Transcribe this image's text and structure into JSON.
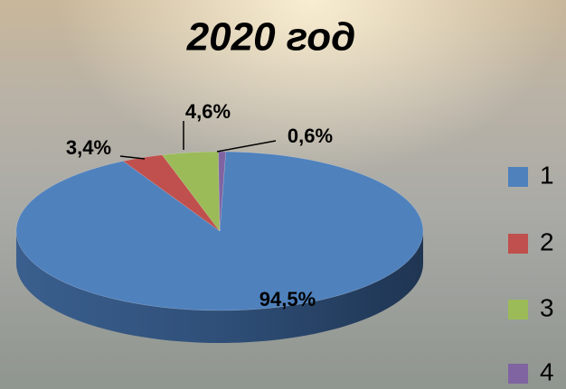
{
  "chart_data": {
    "type": "pie",
    "title": "2020 год",
    "categories": [
      "1",
      "2",
      "3",
      "4"
    ],
    "values": [
      94.5,
      3.4,
      4.6,
      0.6
    ],
    "value_labels": [
      "94,5%",
      "3,4%",
      "4,6%",
      "0,6%"
    ],
    "colors": [
      "#4f81bd",
      "#c0504d",
      "#9bbb59",
      "#8064a2"
    ],
    "legend": "right"
  }
}
